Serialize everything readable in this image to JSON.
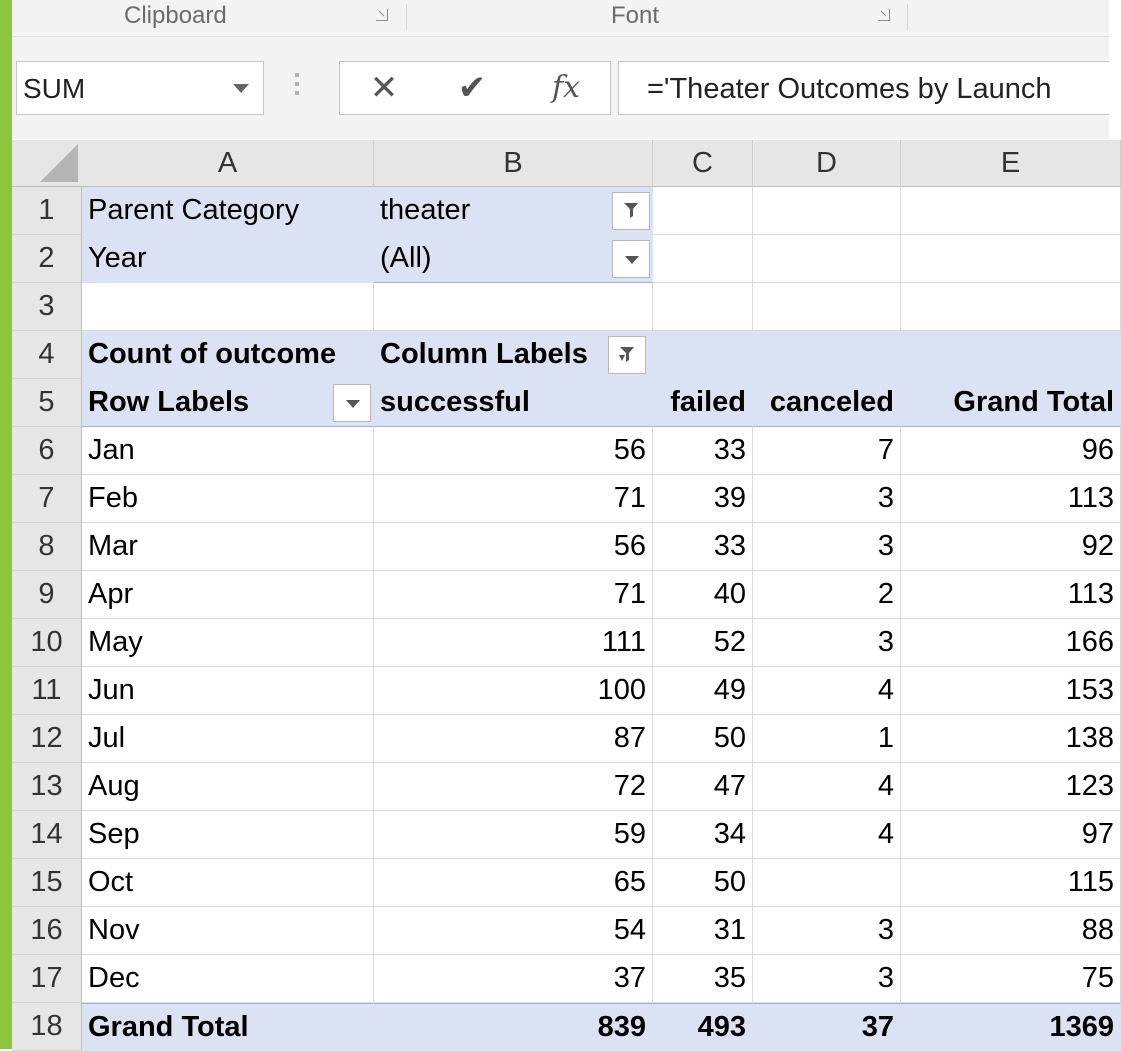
{
  "ribbon": {
    "groups": [
      {
        "label": "Clipboard"
      },
      {
        "label": "Font"
      }
    ]
  },
  "formula_bar": {
    "name_box": "SUM",
    "cancel_glyph": "✕",
    "enter_glyph": "✔",
    "fx_label": "fx",
    "formula": "='Theater Outcomes by Launch"
  },
  "columns": [
    "A",
    "B",
    "C",
    "D",
    "E"
  ],
  "rows": [
    "1",
    "2",
    "3",
    "4",
    "5",
    "6",
    "7",
    "8",
    "9",
    "10",
    "11",
    "12",
    "13",
    "14",
    "15",
    "16",
    "17",
    "18"
  ],
  "pivot": {
    "filters": [
      {
        "label": "Parent Category",
        "value": "theater"
      },
      {
        "label": "Year",
        "value": "(All)"
      }
    ],
    "value_label": "Count of outcome",
    "column_labels": "Column Labels",
    "row_labels": "Row Labels",
    "headers": [
      "successful",
      "failed",
      "canceled",
      "Grand Total"
    ],
    "data": [
      {
        "month": "Jan",
        "successful": "56",
        "failed": "33",
        "canceled": "7",
        "total": "96"
      },
      {
        "month": "Feb",
        "successful": "71",
        "failed": "39",
        "canceled": "3",
        "total": "113"
      },
      {
        "month": "Mar",
        "successful": "56",
        "failed": "33",
        "canceled": "3",
        "total": "92"
      },
      {
        "month": "Apr",
        "successful": "71",
        "failed": "40",
        "canceled": "2",
        "total": "113"
      },
      {
        "month": "May",
        "successful": "111",
        "failed": "52",
        "canceled": "3",
        "total": "166"
      },
      {
        "month": "Jun",
        "successful": "100",
        "failed": "49",
        "canceled": "4",
        "total": "153"
      },
      {
        "month": "Jul",
        "successful": "87",
        "failed": "50",
        "canceled": "1",
        "total": "138"
      },
      {
        "month": "Aug",
        "successful": "72",
        "failed": "47",
        "canceled": "4",
        "total": "123"
      },
      {
        "month": "Sep",
        "successful": "59",
        "failed": "34",
        "canceled": "4",
        "total": "97"
      },
      {
        "month": "Oct",
        "successful": "65",
        "failed": "50",
        "canceled": "",
        "total": "115"
      },
      {
        "month": "Nov",
        "successful": "54",
        "failed": "31",
        "canceled": "3",
        "total": "88"
      },
      {
        "month": "Dec",
        "successful": "37",
        "failed": "35",
        "canceled": "3",
        "total": "75"
      }
    ],
    "grand_total": {
      "label": "Grand Total",
      "successful": "839",
      "failed": "493",
      "canceled": "37",
      "total": "1369"
    }
  },
  "colors": {
    "pivot_fill": "#dbe2f3",
    "accent_green": "#8cc63f"
  }
}
